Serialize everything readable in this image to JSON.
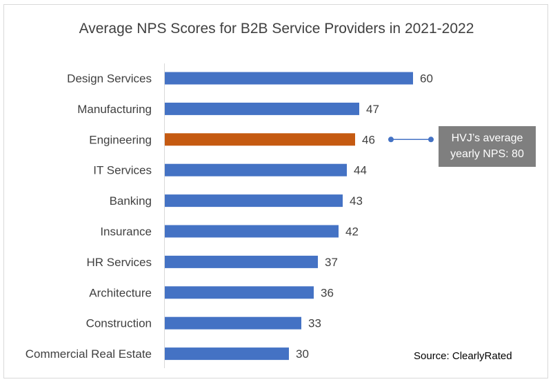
{
  "chart_data": {
    "type": "bar",
    "orientation": "horizontal",
    "title": "Average NPS Scores for B2B Service Providers in 2021-2022",
    "categories": [
      "Design Services",
      "Manufacturing",
      "Engineering",
      "IT Services",
      "Banking",
      "Insurance",
      "HR Services",
      "Architecture",
      "Construction",
      "Commercial Real Estate"
    ],
    "values": [
      60,
      47,
      46,
      44,
      43,
      42,
      37,
      36,
      33,
      30
    ],
    "highlight_category": "Engineering",
    "colors": {
      "bar": "#4472c4",
      "highlight": "#c55a11",
      "callout_bg": "#7f7f7f",
      "connector": "#4472c4"
    },
    "annotation": "HVJ’s average yearly NPS: 80",
    "source": "Source: ClearlyRated",
    "legend": "none",
    "grid": false
  }
}
